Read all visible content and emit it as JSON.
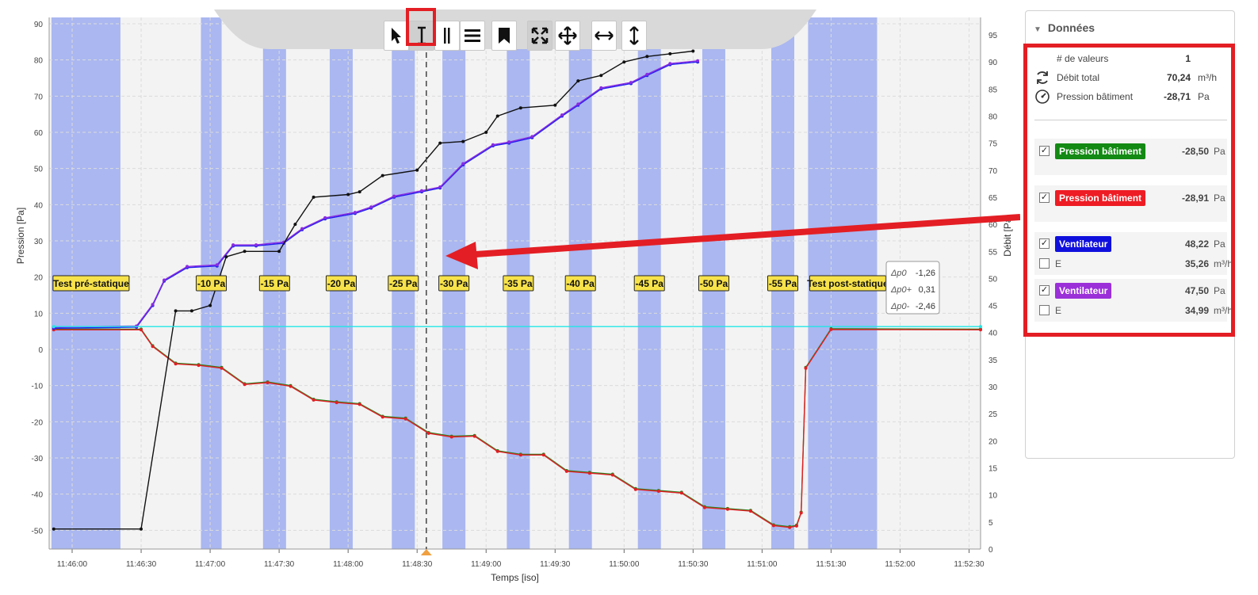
{
  "chart_data": {
    "type": "line",
    "xlabel": "Temps [iso]",
    "ylabel_left": "Pression [Pa]",
    "ylabel_right": "Débit [Pa]",
    "xlim": [
      "11:45:50",
      "11:52:35"
    ],
    "ylim_left": [
      -52,
      91
    ],
    "ylim_right": [
      0,
      98
    ],
    "grid": true,
    "x_ticks": [
      "11:46:00",
      "11:46:30",
      "11:47:00",
      "11:47:30",
      "11:48:00",
      "11:48:30",
      "11:49:00",
      "11:49:30",
      "11:50:00",
      "11:50:30",
      "11:51:00",
      "11:51:30",
      "11:52:00",
      "11:52:30"
    ],
    "y_ticks_left": [
      "90",
      "80",
      "70",
      "60",
      "50",
      "40",
      "30",
      "20",
      "10",
      "0",
      "-10",
      "-20",
      "-30",
      "-40",
      "-50"
    ],
    "y_ticks_right": [
      "95",
      "90",
      "85",
      "80",
      "75",
      "70",
      "65",
      "60",
      "55",
      "50",
      "45",
      "40",
      "35",
      "30",
      "25",
      "20",
      "15",
      "10",
      "5",
      "0"
    ],
    "phases": [
      {
        "label": "Test pré-statique",
        "start": "11:45:51",
        "end": "11:46:21"
      },
      {
        "label": "-10 Pa",
        "start": "11:46:56",
        "end": "11:47:05"
      },
      {
        "label": "-15 Pa",
        "start": "11:47:23",
        "end": "11:47:33"
      },
      {
        "label": "-20 Pa",
        "start": "11:47:52",
        "end": "11:48:02"
      },
      {
        "label": "-25 Pa",
        "start": "11:48:19",
        "end": "11:48:29"
      },
      {
        "label": "-30 Pa",
        "start": "11:48:41",
        "end": "11:48:51"
      },
      {
        "label": "-35 Pa",
        "start": "11:49:09",
        "end": "11:49:19"
      },
      {
        "label": "-40 Pa",
        "start": "11:49:36",
        "end": "11:49:46"
      },
      {
        "label": "-45 Pa",
        "start": "11:50:06",
        "end": "11:50:16"
      },
      {
        "label": "-50 Pa",
        "start": "11:50:34",
        "end": "11:50:44"
      },
      {
        "label": "-55 Pa",
        "start": "11:51:04",
        "end": "11:51:14"
      },
      {
        "label": "Test post-statique",
        "start": "11:51:20",
        "end": "11:51:50"
      }
    ],
    "cursor_time": "11:48:34",
    "series": [
      {
        "name": "Pression bâtiment",
        "color": "#1e8a1e",
        "axis": "left",
        "x": [
          "11:45:52",
          "11:46:30",
          "11:46:35",
          "11:46:45",
          "11:46:55",
          "11:47:05",
          "11:47:15",
          "11:47:25",
          "11:47:35",
          "11:47:45",
          "11:47:55",
          "11:48:05",
          "11:48:15",
          "11:48:25",
          "11:48:35",
          "11:48:45",
          "11:48:55",
          "11:49:05",
          "11:49:15",
          "11:49:25",
          "11:49:35",
          "11:49:45",
          "11:49:55",
          "11:50:05",
          "11:50:15",
          "11:50:25",
          "11:50:35",
          "11:50:45",
          "11:50:55",
          "11:51:05",
          "11:51:12",
          "11:51:15",
          "11:51:17",
          "11:51:19",
          "11:51:30",
          "11:52:35"
        ],
        "y": [
          5.6,
          5.6,
          1,
          -3.8,
          -4.2,
          -5,
          -9.5,
          -9,
          -10,
          -13.8,
          -14.5,
          -15,
          -18.5,
          -19,
          -23,
          -24,
          -23.8,
          -28,
          -29,
          -29,
          -33.5,
          -34,
          -34.5,
          -38.5,
          -39,
          -39.5,
          -43.5,
          -44,
          -44.5,
          -48.5,
          -49,
          -48.6,
          -45,
          -5,
          5.7,
          5.6
        ]
      },
      {
        "name": "Pression bâtiment",
        "color": "#e31e24",
        "axis": "left",
        "x": [
          "11:45:52",
          "11:46:30",
          "11:46:35",
          "11:46:45",
          "11:46:55",
          "11:47:05",
          "11:47:15",
          "11:47:25",
          "11:47:35",
          "11:47:45",
          "11:47:55",
          "11:48:05",
          "11:48:15",
          "11:48:25",
          "11:48:35",
          "11:48:45",
          "11:48:55",
          "11:49:05",
          "11:49:15",
          "11:49:25",
          "11:49:35",
          "11:49:45",
          "11:49:55",
          "11:50:05",
          "11:50:15",
          "11:50:25",
          "11:50:35",
          "11:50:45",
          "11:50:55",
          "11:51:05",
          "11:51:12",
          "11:51:15",
          "11:51:17",
          "11:51:19",
          "11:51:30",
          "11:52:35"
        ],
        "y": [
          5.4,
          5.4,
          0.8,
          -4,
          -4.4,
          -5.2,
          -9.7,
          -9.2,
          -10.2,
          -14,
          -14.7,
          -15.2,
          -18.7,
          -19.2,
          -23.2,
          -24.2,
          -24,
          -28.2,
          -29.2,
          -29.2,
          -33.7,
          -34.2,
          -34.7,
          -38.7,
          -39.2,
          -39.7,
          -43.7,
          -44.2,
          -44.7,
          -48.7,
          -49.2,
          -48.8,
          -45.2,
          -5.2,
          5.5,
          5.4
        ]
      },
      {
        "name": "Ventilateur",
        "color": "#2020ee",
        "axis": "right",
        "x": [
          "11:45:52",
          "11:46:28",
          "11:46:35",
          "11:46:40",
          "11:46:50",
          "11:47:03",
          "11:47:10",
          "11:47:20",
          "11:47:32",
          "11:47:40",
          "11:47:50",
          "11:48:03",
          "11:48:10",
          "11:48:20",
          "11:48:32",
          "11:48:40",
          "11:48:50",
          "11:49:03",
          "11:49:10",
          "11:49:20",
          "11:49:33",
          "11:49:40",
          "11:49:50",
          "11:50:03",
          "11:50:10",
          "11:50:20",
          "11:50:32"
        ],
        "y": [
          40.8,
          41,
          45,
          49.5,
          52,
          52.3,
          56,
          56,
          56.5,
          59,
          61,
          62,
          63,
          65,
          66,
          66.7,
          71,
          74.5,
          75,
          76,
          80,
          82,
          85,
          86,
          87.5,
          89.5,
          90
        ]
      },
      {
        "name": "Ventilateur",
        "color": "#8a2be2",
        "axis": "right",
        "x": [
          "11:45:52",
          "11:46:28",
          "11:46:35",
          "11:46:40",
          "11:46:50",
          "11:47:03",
          "11:47:10",
          "11:47:20",
          "11:47:32",
          "11:47:40",
          "11:47:50",
          "11:48:03",
          "11:48:10",
          "11:48:20",
          "11:48:32",
          "11:48:40",
          "11:48:50",
          "11:49:03",
          "11:49:10",
          "11:49:20",
          "11:49:33",
          "11:49:40",
          "11:49:50",
          "11:50:03",
          "11:50:10",
          "11:50:20",
          "11:50:32"
        ],
        "y": [
          41,
          41.2,
          45.2,
          49.7,
          52.2,
          52.5,
          56.2,
          56.2,
          56.7,
          59.2,
          61.2,
          62.2,
          63.2,
          65.2,
          66.2,
          66.9,
          71.2,
          74.7,
          75.2,
          76.2,
          80.2,
          82.2,
          85.2,
          86.2,
          87.7,
          89.7,
          90.2
        ]
      },
      {
        "name": "E",
        "color": "#111111",
        "axis": "right",
        "x": [
          "11:45:52",
          "11:46:30",
          "11:46:45",
          "11:46:52",
          "11:47:00",
          "11:47:07",
          "11:47:15",
          "11:47:30",
          "11:47:37",
          "11:47:45",
          "11:48:00",
          "11:48:05",
          "11:48:15",
          "11:48:30",
          "11:48:40",
          "11:48:50",
          "11:49:00",
          "11:49:05",
          "11:49:15",
          "11:49:30",
          "11:49:40",
          "11:49:50",
          "11:50:00",
          "11:50:10",
          "11:50:20",
          "11:50:30"
        ],
        "y": [
          3.7,
          3.7,
          44,
          44,
          45,
          54,
          55,
          55,
          60,
          65,
          65.5,
          66,
          69,
          70,
          75,
          75.3,
          77,
          80,
          81.5,
          82,
          86.5,
          87.5,
          90,
          91,
          91.5,
          92
        ]
      },
      {
        "name": "cyan",
        "color": "#22e6e6",
        "axis": "left",
        "x": [
          "11:45:52",
          "11:52:35"
        ],
        "y": [
          6.3,
          6.3
        ]
      }
    ]
  },
  "toolbar": {
    "buttons": [
      {
        "icon": "pointer-icon",
        "active": false
      },
      {
        "icon": "text-cursor-icon",
        "active": true
      },
      {
        "icon": "double-bar-icon",
        "active": false
      },
      {
        "icon": "menu-icon",
        "active": false
      },
      {
        "icon": "bookmark-icon",
        "active": false
      },
      {
        "icon": "fit-all-icon",
        "active": true
      },
      {
        "icon": "move-icon",
        "active": false
      },
      {
        "icon": "horizontal-arrows-icon",
        "active": false
      },
      {
        "icon": "vertical-arrows-icon",
        "active": false
      }
    ]
  },
  "tooltip": {
    "rows": [
      {
        "label": "Δp0",
        "value": "-1,26"
      },
      {
        "label": "Δp0+",
        "value": "0,31"
      },
      {
        "label": "Δp0-",
        "value": "-2,46"
      }
    ]
  },
  "panel": {
    "title": "Données",
    "summary": [
      {
        "label": "# de valeurs",
        "value": "1",
        "unit": "",
        "icon": ""
      },
      {
        "label": "Débit total",
        "value": "70,24",
        "unit": "m³/h",
        "icon": "refresh-icon"
      },
      {
        "label": "Pression bâtiment",
        "value": "-28,71",
        "unit": "Pa",
        "icon": "gauge-icon"
      }
    ],
    "series": [
      {
        "label": "Pression bâtiment",
        "color": "#138a13",
        "value": "-28,50",
        "unit": "Pa",
        "checked": true,
        "sub": null
      },
      {
        "label": "Pression bâtiment",
        "color": "#ee1c24",
        "value": "-28,91",
        "unit": "Pa",
        "checked": true,
        "sub": null
      },
      {
        "label": "Ventilateur",
        "color": "#1010dd",
        "value": "48,22",
        "unit": "Pa",
        "checked": true,
        "sub": {
          "label": "E",
          "value": "35,26",
          "unit": "m³/h",
          "checked": false
        }
      },
      {
        "label": "Ventilateur",
        "color": "#9b30d9",
        "value": "47,50",
        "unit": "Pa",
        "checked": true,
        "sub": {
          "label": "E",
          "value": "34,99",
          "unit": "m³/h",
          "checked": false
        }
      }
    ]
  },
  "colors": {
    "highlight": "#e31e24",
    "phase_band": "#aab7f0",
    "phase_label_bg": "#f7e24a",
    "plot_bg": "#f3f3f3"
  }
}
